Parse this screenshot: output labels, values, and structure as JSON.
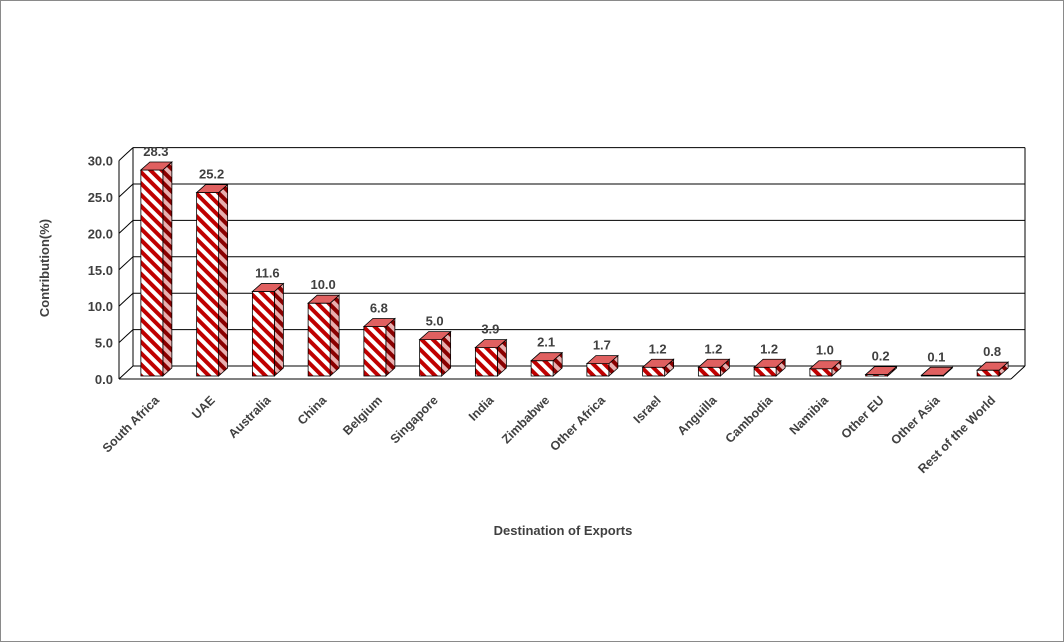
{
  "chart_data": {
    "type": "bar",
    "style": "3d-column",
    "categories": [
      "South Africa",
      "UAE",
      "Australia",
      "China",
      "Belgium",
      "Singapore",
      "India",
      "Zimbabwe",
      "Other Africa",
      "Israel",
      "Anguilla",
      "Cambodia",
      "Namibia",
      "Other EU",
      "Other Asia",
      "Rest of the World"
    ],
    "values": [
      28.3,
      25.2,
      11.6,
      10.0,
      6.8,
      5.0,
      3.9,
      2.1,
      1.7,
      1.2,
      1.2,
      1.2,
      1.0,
      0.2,
      0.1,
      0.8
    ],
    "value_labels": [
      "28.3",
      "25.2",
      "11.6",
      "10.0",
      "6.8",
      "5.0",
      "3.9",
      "2.1",
      "1.7",
      "1.2",
      "1.2",
      "1.2",
      "1.0",
      "0.2",
      "0.1",
      "0.8"
    ],
    "title": "",
    "xlabel": "Destination of Exports",
    "ylabel": "Contribution(%)",
    "ylim": [
      0,
      30
    ],
    "yticks": [
      "0.0",
      "5.0",
      "10.0",
      "15.0",
      "20.0",
      "25.0",
      "30.0"
    ],
    "grid": true,
    "legend": "none",
    "colors": {
      "bar_stripe": "#c00000",
      "bar_base": "#ffffff",
      "gridline": "#000000",
      "text": "#404040"
    }
  }
}
